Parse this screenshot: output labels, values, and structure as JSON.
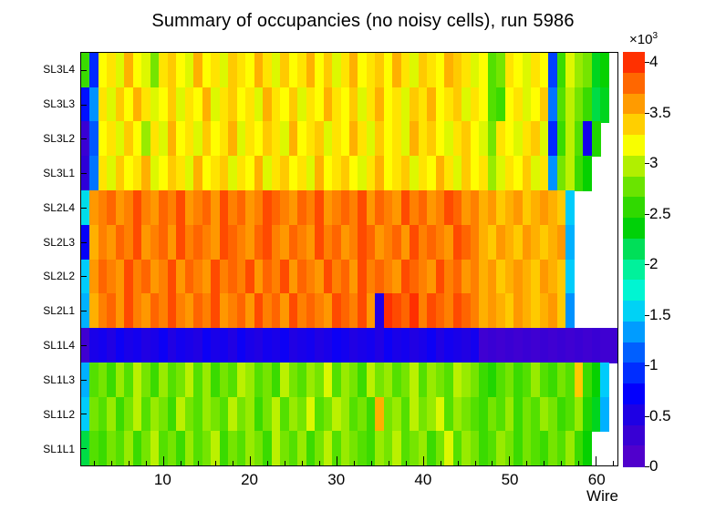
{
  "chart_data": {
    "type": "heatmap",
    "title": "Summary of occupancies (no noisy cells), run 5986",
    "xlabel": "Wire",
    "ylabel": "",
    "x_bins": 62,
    "x_ticks": [
      10,
      20,
      30,
      40,
      50,
      60
    ],
    "y_categories": [
      "SL3L4",
      "SL3L3",
      "SL3L2",
      "SL3L1",
      "SL2L4",
      "SL2L3",
      "SL2L2",
      "SL2L1",
      "SL1L4",
      "SL1L3",
      "SL1L2",
      "SL1L1"
    ],
    "y_order": "top-to-bottom",
    "zmin": 0,
    "zmax": 4100,
    "colorbar": {
      "tick_values": [
        0,
        500,
        1000,
        1500,
        2000,
        2500,
        3000,
        3500,
        4000
      ],
      "tick_labels": [
        "0",
        "0.5",
        "1",
        "1.5",
        "2",
        "2.5",
        "3",
        "3.5",
        "4"
      ],
      "multiplier": "×10",
      "exponent": "3",
      "segments": 20
    },
    "palette": [
      [
        0.0,
        "#5c00c8"
      ],
      [
        0.1,
        "#2c00d8"
      ],
      [
        0.18,
        "#0000ff"
      ],
      [
        0.28,
        "#0064ff"
      ],
      [
        0.36,
        "#00c8ff"
      ],
      [
        0.44,
        "#00ffc8"
      ],
      [
        0.52,
        "#00e060"
      ],
      [
        0.58,
        "#00d000"
      ],
      [
        0.66,
        "#55e000"
      ],
      [
        0.72,
        "#aaee00"
      ],
      [
        0.78,
        "#ffff00"
      ],
      [
        0.85,
        "#ffb400"
      ],
      [
        0.91,
        "#ff7800"
      ],
      [
        1.0,
        "#ff1400"
      ]
    ],
    "values": [
      [
        2600,
        900,
        3200,
        3300,
        3100,
        3500,
        3200,
        3100,
        2800,
        3300,
        3400,
        3200,
        3100,
        3500,
        3200,
        3300,
        3100,
        3400,
        3300,
        3200,
        3500,
        3300,
        3100,
        3400,
        3200,
        3300,
        3500,
        3200,
        3400,
        3100,
        3300,
        3500,
        3200,
        3300,
        3400,
        3200,
        3500,
        3300,
        3100,
        3400,
        3300,
        3200,
        3500,
        3400,
        3300,
        3100,
        3200,
        2700,
        2800,
        3300,
        3200,
        3100,
        3300,
        3200,
        1000,
        2600,
        3100,
        2900,
        2800,
        2300,
        2400,
        null
      ],
      [
        800,
        1300,
        3300,
        3100,
        3400,
        3200,
        3500,
        3300,
        3100,
        3200,
        3400,
        3100,
        3300,
        3200,
        3500,
        3100,
        3300,
        3400,
        3200,
        3300,
        3100,
        3500,
        3300,
        3200,
        3400,
        3100,
        3300,
        3200,
        3500,
        3300,
        3200,
        3400,
        3100,
        3300,
        3500,
        3200,
        3300,
        3100,
        3400,
        3300,
        3500,
        3200,
        3300,
        3400,
        3100,
        3300,
        3200,
        2700,
        2600,
        3200,
        3300,
        3100,
        3200,
        3400,
        1200,
        2700,
        3000,
        2800,
        2600,
        2200,
        2300,
        null
      ],
      [
        300,
        1100,
        3200,
        3300,
        3100,
        3400,
        3200,
        2900,
        3300,
        3100,
        3500,
        3200,
        3300,
        3100,
        3400,
        3200,
        3300,
        3500,
        3100,
        3300,
        3200,
        3400,
        3300,
        3100,
        3500,
        3200,
        3300,
        3400,
        3100,
        3300,
        3200,
        3500,
        3300,
        3100,
        3400,
        3200,
        3300,
        3100,
        3500,
        3300,
        3400,
        3200,
        3100,
        3300,
        3400,
        3200,
        3100,
        2800,
        3300,
        3200,
        3100,
        3300,
        3400,
        3100,
        900,
        2600,
        3000,
        2700,
        600,
        2500,
        null,
        null
      ],
      [
        400,
        1200,
        3300,
        3100,
        3400,
        3200,
        3300,
        3500,
        3100,
        3200,
        3400,
        3300,
        3100,
        3500,
        3200,
        3300,
        3400,
        3100,
        3300,
        3200,
        3500,
        3100,
        3300,
        3400,
        3200,
        3300,
        3100,
        3500,
        3200,
        3300,
        3400,
        3200,
        3100,
        3300,
        3500,
        3200,
        3300,
        3400,
        3100,
        3300,
        3200,
        3500,
        3300,
        3100,
        3400,
        3200,
        3300,
        2900,
        3100,
        3300,
        3200,
        3400,
        3100,
        3300,
        1300,
        2800,
        3000,
        2600,
        2400,
        null,
        null,
        null
      ],
      [
        1600,
        3600,
        3700,
        3800,
        3600,
        3700,
        3900,
        3700,
        3600,
        3800,
        3700,
        3900,
        3600,
        3700,
        3800,
        3600,
        3900,
        3700,
        3800,
        3600,
        3700,
        3900,
        3800,
        3700,
        3600,
        3800,
        3700,
        3900,
        3600,
        3700,
        3800,
        3700,
        3900,
        3600,
        3800,
        3700,
        3600,
        3900,
        3700,
        3800,
        3600,
        3700,
        3900,
        3800,
        3600,
        3700,
        3500,
        3600,
        3400,
        3500,
        3600,
        3400,
        3500,
        3600,
        3500,
        3400,
        1500,
        null,
        null,
        null,
        null,
        null
      ],
      [
        700,
        3500,
        3700,
        3600,
        3800,
        3700,
        3900,
        3600,
        3700,
        3800,
        3600,
        3900,
        3700,
        3800,
        3700,
        3600,
        3900,
        3800,
        3700,
        3600,
        3800,
        3900,
        3700,
        3600,
        3800,
        3700,
        3600,
        3900,
        3700,
        3800,
        3600,
        3700,
        3900,
        3800,
        3600,
        3700,
        3800,
        3600,
        3900,
        3700,
        3800,
        3700,
        3600,
        3900,
        3800,
        3700,
        3500,
        3400,
        3600,
        3500,
        3400,
        3600,
        3500,
        3400,
        3500,
        3600,
        1400,
        null,
        null,
        null,
        null,
        null
      ],
      [
        1500,
        3600,
        3800,
        3700,
        3600,
        3900,
        3700,
        3800,
        3600,
        3700,
        3900,
        3600,
        3800,
        3700,
        3600,
        3900,
        3700,
        3800,
        3700,
        3900,
        3600,
        3800,
        3700,
        3900,
        3600,
        3800,
        3700,
        3600,
        3900,
        3700,
        3800,
        3600,
        3900,
        3700,
        3800,
        3700,
        3600,
        3900,
        3800,
        3700,
        3600,
        3900,
        3700,
        3800,
        3600,
        3700,
        3500,
        3600,
        3400,
        3500,
        3600,
        3500,
        3400,
        3600,
        3500,
        3400,
        1500,
        null,
        null,
        null,
        null,
        null
      ],
      [
        1400,
        3500,
        3700,
        3800,
        3600,
        3900,
        3700,
        3600,
        3800,
        3700,
        3900,
        3700,
        3600,
        3800,
        3700,
        3900,
        3600,
        3700,
        3800,
        3600,
        3900,
        3700,
        3800,
        3600,
        3900,
        3700,
        3800,
        3700,
        3600,
        3900,
        3800,
        3700,
        3900,
        3600,
        500,
        4000,
        3900,
        3800,
        4000,
        3700,
        3900,
        3800,
        3700,
        3900,
        3800,
        3700,
        3500,
        3600,
        3500,
        3400,
        3600,
        3500,
        3400,
        3500,
        3600,
        3400,
        1300,
        null,
        null,
        null,
        null,
        null
      ],
      [
        250,
        550,
        600,
        500,
        650,
        550,
        600,
        500,
        550,
        650,
        500,
        600,
        550,
        500,
        650,
        550,
        600,
        500,
        650,
        550,
        500,
        600,
        550,
        650,
        500,
        550,
        600,
        500,
        550,
        650,
        600,
        500,
        550,
        600,
        500,
        650,
        550,
        600,
        500,
        550,
        650,
        500,
        600,
        550,
        500,
        600,
        250,
        300,
        250,
        300,
        250,
        300,
        250,
        300,
        250,
        300,
        250,
        300,
        250,
        300,
        250,
        250
      ],
      [
        1400,
        2700,
        2800,
        2600,
        2900,
        2700,
        3000,
        2800,
        2600,
        2900,
        2700,
        2800,
        3000,
        2700,
        2900,
        2600,
        2800,
        2700,
        3000,
        2900,
        2700,
        2800,
        2600,
        3000,
        2800,
        2700,
        2900,
        2800,
        3100,
        2700,
        2900,
        2800,
        2600,
        3000,
        2800,
        2900,
        2700,
        2800,
        3000,
        2700,
        2900,
        2800,
        2700,
        3000,
        2900,
        2800,
        2600,
        2500,
        2700,
        2800,
        2600,
        2700,
        2900,
        2700,
        2600,
        2800,
        2700,
        3400,
        2600,
        2400,
        1500,
        null
      ],
      [
        1500,
        2800,
        2700,
        2900,
        2600,
        2800,
        3000,
        2700,
        2900,
        2800,
        2600,
        3000,
        2800,
        2700,
        2900,
        2800,
        2700,
        3000,
        2800,
        2900,
        2600,
        2800,
        3000,
        2700,
        2900,
        2800,
        3100,
        2700,
        2800,
        3000,
        2900,
        2700,
        2800,
        2600,
        3500,
        2800,
        2900,
        2700,
        3000,
        2800,
        2900,
        3100,
        2700,
        2900,
        2800,
        2700,
        2600,
        2800,
        2700,
        2900,
        2600,
        2800,
        2700,
        2900,
        2800,
        2600,
        2700,
        2900,
        2500,
        2300,
        1400,
        null
      ],
      [
        2200,
        2700,
        2600,
        2800,
        2700,
        2900,
        2600,
        2800,
        3000,
        2700,
        2800,
        2600,
        2900,
        2700,
        2800,
        3000,
        2600,
        2800,
        2700,
        2900,
        2800,
        2600,
        3000,
        2800,
        2700,
        2900,
        2600,
        2800,
        3000,
        2700,
        2900,
        2800,
        2700,
        2600,
        2900,
        2800,
        3000,
        2700,
        2800,
        2900,
        2600,
        2800,
        3100,
        2700,
        2900,
        2800,
        2600,
        2700,
        2900,
        2800,
        2600,
        2800,
        2700,
        2600,
        2800,
        2700,
        2900,
        2600,
        2400,
        null,
        null,
        null
      ]
    ]
  }
}
